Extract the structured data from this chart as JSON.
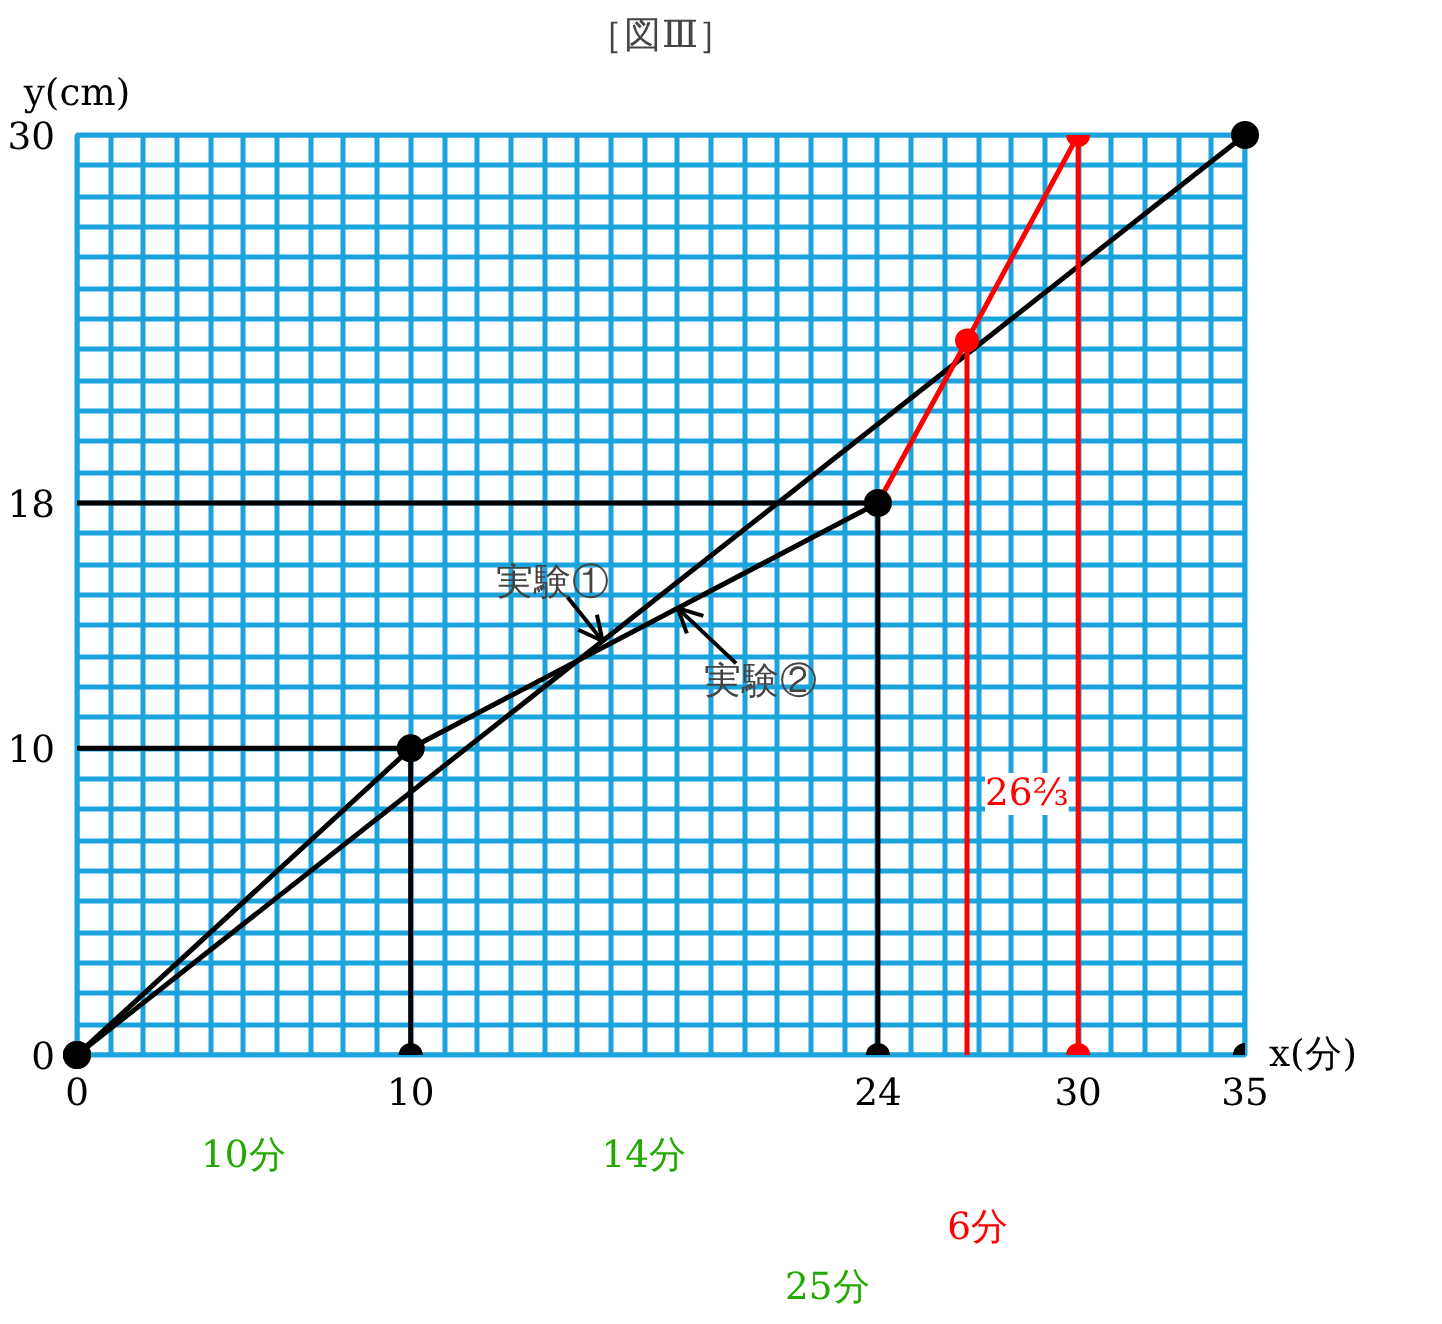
{
  "chart_data": {
    "type": "line",
    "title": "［図Ⅲ］",
    "xlabel": "x(分)",
    "ylabel": "y(cm)",
    "xlim": [
      0,
      35
    ],
    "ylim": [
      0,
      30
    ],
    "xticks": [
      0,
      {
        "value": 1,
        "label": null
      },
      {
        "value": 2,
        "label": null
      },
      {
        "value": 3,
        "label": null
      },
      {
        "value": 4,
        "label": null
      },
      {
        "value": 5,
        "label": null
      },
      {
        "value": 6,
        "label": null
      },
      {
        "value": 7,
        "label": null
      },
      {
        "value": 8,
        "label": null
      },
      {
        "value": 9,
        "label": null
      },
      10,
      {
        "value": 11,
        "label": null
      },
      {
        "value": 12,
        "label": null
      },
      {
        "value": 13,
        "label": null
      },
      {
        "value": 14,
        "label": null
      },
      {
        "value": 15,
        "label": null
      },
      {
        "value": 16,
        "label": null
      },
      {
        "value": 17,
        "label": null
      },
      {
        "value": 18,
        "label": null
      },
      {
        "value": 19,
        "label": null
      },
      {
        "value": 20,
        "label": null
      },
      {
        "value": 21,
        "label": null
      },
      {
        "value": 22,
        "label": null
      },
      {
        "value": 23,
        "label": null
      },
      24,
      {
        "value": 25,
        "label": null
      },
      {
        "value": 26,
        "label": null
      },
      {
        "value": 27,
        "label": null
      },
      {
        "value": 28,
        "label": null
      },
      {
        "value": 29,
        "label": null
      },
      30,
      {
        "value": 31,
        "label": null
      },
      {
        "value": 32,
        "label": null
      },
      {
        "value": 33,
        "label": null
      },
      {
        "value": 34,
        "label": null
      },
      35
    ],
    "yticks": [
      0,
      {
        "value": 1,
        "label": null
      },
      {
        "value": 2,
        "label": null
      },
      {
        "value": 3,
        "label": null
      },
      {
        "value": 4,
        "label": null
      },
      {
        "value": 5,
        "label": null
      },
      {
        "value": 6,
        "label": null
      },
      {
        "value": 7,
        "label": null
      },
      {
        "value": 8,
        "label": null
      },
      {
        "value": 9,
        "label": null
      },
      10,
      {
        "value": 11,
        "label": null
      },
      {
        "value": 12,
        "label": null
      },
      {
        "value": 13,
        "label": null
      },
      {
        "value": 14,
        "label": null
      },
      {
        "value": 15,
        "label": null
      },
      {
        "value": 16,
        "label": null
      },
      {
        "value": 17,
        "label": null
      },
      18,
      {
        "value": 19,
        "label": null
      },
      {
        "value": 20,
        "label": null
      },
      {
        "value": 21,
        "label": null
      },
      {
        "value": 22,
        "label": null
      },
      {
        "value": 23,
        "label": null
      },
      {
        "value": 24,
        "label": null
      },
      {
        "value": 25,
        "label": null
      },
      {
        "value": 26,
        "label": null
      },
      {
        "value": 27,
        "label": null
      },
      {
        "value": 28,
        "label": null
      },
      {
        "value": 29,
        "label": null
      },
      30
    ],
    "grid": true,
    "series": [
      {
        "name": "実験①",
        "color": "#000000",
        "x": [
          0,
          35
        ],
        "values": [
          0,
          30
        ],
        "marker": "circle"
      },
      {
        "name": "実験②",
        "color": "#000000",
        "x": [
          0,
          10,
          24
        ],
        "values": [
          0,
          10,
          18
        ],
        "marker": "circle"
      },
      {
        "color": "#ff0000",
        "x": [
          24,
          26.67,
          30
        ],
        "values": [
          18,
          23.3,
          30
        ],
        "marker": "circle"
      },
      {
        "color": "#000000",
        "x": [
          0,
          10,
          10,
          null,
          0,
          24,
          24
        ],
        "values": [
          10,
          10,
          0,
          null,
          18,
          18,
          0
        ],
        "marker": "none"
      },
      {
        "color": "#ff0000",
        "x": [
          26.67,
          26.67,
          null,
          30,
          30
        ],
        "values": [
          23.3,
          0,
          null,
          30,
          0
        ],
        "marker": "none"
      },
      {
        "type": "scatter",
        "color": "#000000",
        "x": [
          10,
          24,
          35
        ],
        "values": [
          0,
          0,
          0
        ],
        "marker": "circle"
      },
      {
        "type": "scatter",
        "color": "#ff0000",
        "x": [
          30
        ],
        "values": [
          0
        ],
        "marker": "circle"
      }
    ],
    "annotations": [
      "10分",
      "14分",
      "6分",
      "25分",
      "26⅔"
    ]
  }
}
